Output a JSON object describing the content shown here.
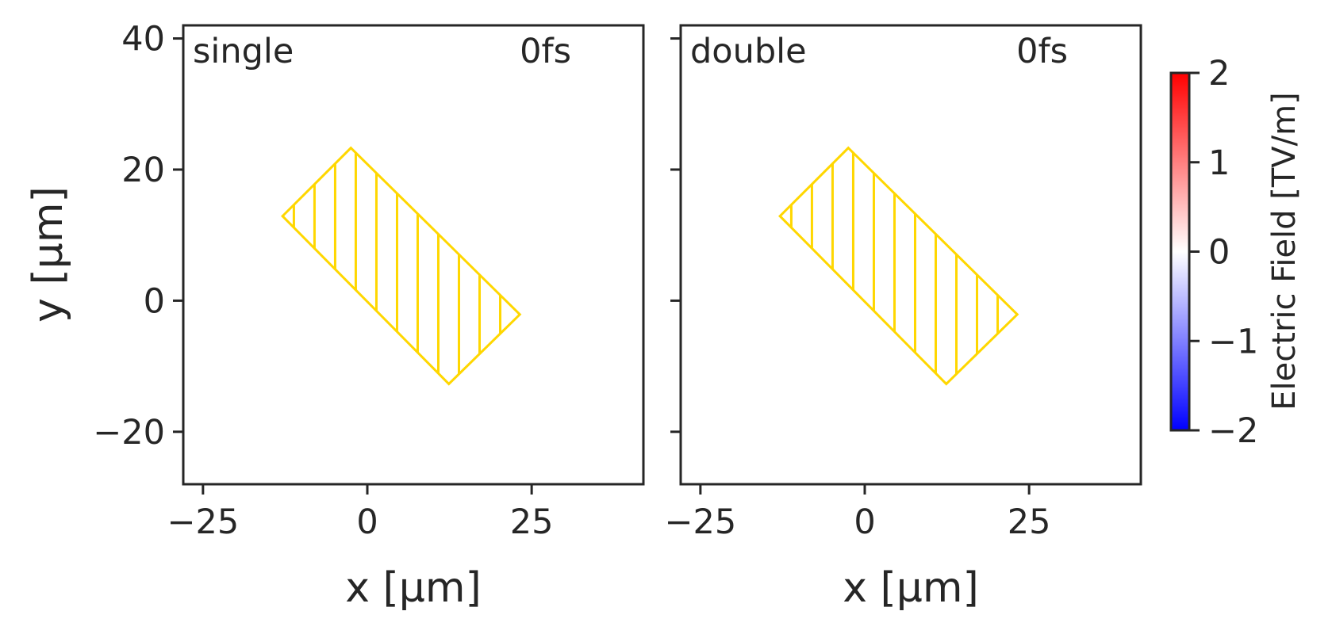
{
  "chart_data": {
    "type": "heatmap",
    "colors": {
      "frame": "#262626",
      "overlay": "#FFD700",
      "cmap_low": "#0000ff",
      "cmap_mid": "#ffffff",
      "cmap_high": "#ff0000"
    },
    "shared_y": true,
    "xlim": [
      -28,
      42
    ],
    "ylim": [
      -28,
      42
    ],
    "xticks": [
      -25,
      0,
      25
    ],
    "xtick_labels": [
      "−25",
      "0",
      "25"
    ],
    "yticks": [
      -20,
      0,
      20,
      40
    ],
    "ytick_labels": [
      "−20",
      "0",
      "20",
      "40"
    ],
    "xlabel": "x [μm]",
    "ylabel": "y [μm]",
    "panels": [
      {
        "label": "single",
        "time": "0fs",
        "structure": {
          "shape": "rotated-rectangle",
          "hatch": "vertical",
          "vertices": [
            [
              -2.5,
              23.3
            ],
            [
              23.2,
              -2.1
            ],
            [
              12.4,
              -12.7
            ],
            [
              -12.9,
              12.9
            ]
          ]
        }
      },
      {
        "label": "double",
        "time": "0fs",
        "structure": {
          "shape": "rotated-rectangle",
          "hatch": "vertical",
          "vertices": [
            [
              -2.5,
              23.3
            ],
            [
              23.2,
              -2.1
            ],
            [
              12.4,
              -12.7
            ],
            [
              -12.9,
              12.9
            ]
          ]
        }
      }
    ],
    "colorbar": {
      "label": "Electric Field [TV/m]",
      "vmin": -2,
      "vmax": 2,
      "ticks": [
        2,
        1,
        0,
        -1,
        -2
      ],
      "tick_labels": [
        "2",
        "1",
        "0",
        "−1",
        "−2"
      ],
      "colormap": "bwr"
    }
  }
}
